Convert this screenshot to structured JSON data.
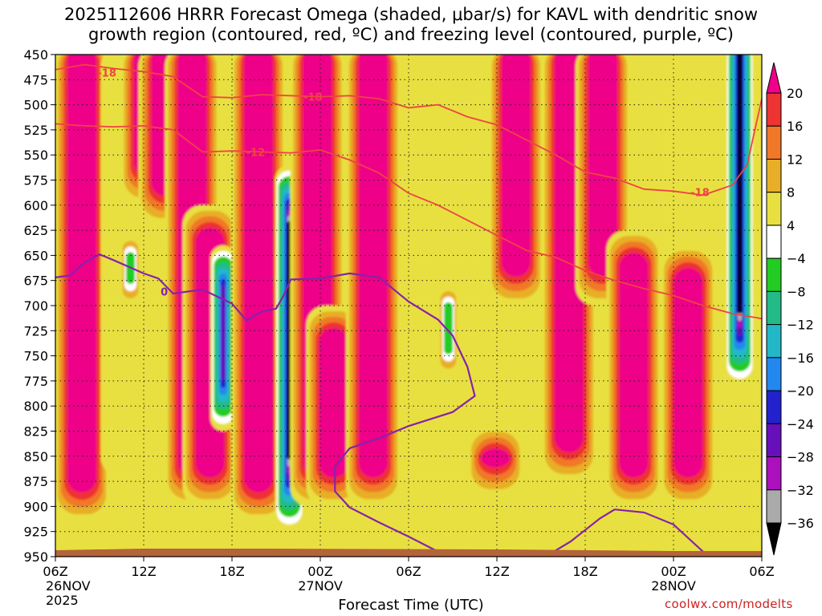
{
  "chart_data": {
    "type": "heatmap",
    "title": [
      "2025112606 HRRR Forecast Omega (shaded, μbar/s) for KAVL with dendritic snow",
      "growth region (contoured, red, ºC) and freezing level (contoured, purple, ºC)"
    ],
    "xlabel": "Forecast Time (UTC)",
    "ylabel": "",
    "credit": "coolwx.com/modelts",
    "y_axis": {
      "unit": "hPa",
      "range": [
        950,
        450
      ],
      "ticks": [
        "450",
        "475",
        "500",
        "525",
        "550",
        "575",
        "600",
        "625",
        "650",
        "675",
        "700",
        "725",
        "750",
        "775",
        "800",
        "825",
        "850",
        "875",
        "900",
        "925",
        "950"
      ]
    },
    "x_axis": {
      "range_hours": [
        0,
        48
      ],
      "ticks": [
        {
          "hour": 0,
          "lines": [
            "06Z",
            "26NOV",
            "2025"
          ]
        },
        {
          "hour": 6,
          "lines": [
            "12Z"
          ]
        },
        {
          "hour": 12,
          "lines": [
            "18Z"
          ]
        },
        {
          "hour": 18,
          "lines": [
            "00Z",
            "27NOV"
          ]
        },
        {
          "hour": 24,
          "lines": [
            "06Z"
          ]
        },
        {
          "hour": 30,
          "lines": [
            "12Z"
          ]
        },
        {
          "hour": 36,
          "lines": [
            "18Z"
          ]
        },
        {
          "hour": 42,
          "lines": [
            "00Z",
            "28NOV"
          ]
        },
        {
          "hour": 48,
          "lines": [
            "06Z"
          ]
        }
      ]
    },
    "grid": true,
    "colorbar": {
      "labels": [
        "20",
        "16",
        "12",
        "8",
        "4",
        "−4",
        "−8",
        "−12",
        "−16",
        "−20",
        "−24",
        "−28",
        "−32",
        "−36"
      ],
      "bins": [
        {
          "color": "#ee0088"
        },
        {
          "color": "#ee3333"
        },
        {
          "color": "#f07828"
        },
        {
          "color": "#e8ae28"
        },
        {
          "color": "#e8e040"
        },
        {
          "color": "#ffffff"
        },
        {
          "color": "#22cc22"
        },
        {
          "color": "#22bb88"
        },
        {
          "color": "#22b8c8"
        },
        {
          "color": "#2288ee"
        },
        {
          "color": "#2222cc"
        },
        {
          "color": "#6610bb"
        },
        {
          "color": "#aa10bb"
        },
        {
          "color": "#aaaaaa"
        },
        {
          "color": "#000000"
        }
      ]
    },
    "omega_columns": [
      {
        "hour": 0.5,
        "top": 450,
        "bottom": 930,
        "level": "yellow"
      },
      {
        "hour": 1.8,
        "top": 450,
        "bottom": 915,
        "level": "magenta"
      },
      {
        "hour": 4.5,
        "top": 450,
        "bottom": 870,
        "level": "yellow"
      },
      {
        "hour": 5.1,
        "top": 630,
        "bottom": 700,
        "level": "green"
      },
      {
        "hour": 6.3,
        "top": 450,
        "bottom": 600,
        "level": "magenta"
      },
      {
        "hour": 7.5,
        "top": 450,
        "bottom": 620,
        "level": "magenta"
      },
      {
        "hour": 9.3,
        "top": 450,
        "bottom": 900,
        "level": "magenta"
      },
      {
        "hour": 10.5,
        "top": 600,
        "bottom": 900,
        "level": "magenta"
      },
      {
        "hour": 11.4,
        "top": 640,
        "bottom": 825,
        "level": "blue"
      },
      {
        "hour": 13.8,
        "top": 450,
        "bottom": 915,
        "level": "magenta"
      },
      {
        "hour": 15.9,
        "top": 560,
        "bottom": 925,
        "level": "black"
      },
      {
        "hour": 17.8,
        "top": 450,
        "bottom": 900,
        "level": "magenta"
      },
      {
        "hour": 18.9,
        "top": 700,
        "bottom": 900,
        "level": "magenta"
      },
      {
        "hour": 21.6,
        "top": 450,
        "bottom": 900,
        "level": "magenta"
      },
      {
        "hour": 26.7,
        "top": 680,
        "bottom": 770,
        "level": "green"
      },
      {
        "hour": 29.9,
        "top": 820,
        "bottom": 890,
        "level": "magenta"
      },
      {
        "hour": 31.3,
        "top": 450,
        "bottom": 700,
        "level": "magenta"
      },
      {
        "hour": 34.9,
        "top": 450,
        "bottom": 875,
        "level": "magenta"
      },
      {
        "hour": 37.2,
        "top": 450,
        "bottom": 700,
        "level": "magenta"
      },
      {
        "hour": 39.3,
        "top": 625,
        "bottom": 900,
        "level": "magenta"
      },
      {
        "hour": 43.0,
        "top": 640,
        "bottom": 900,
        "level": "magenta"
      },
      {
        "hour": 46.5,
        "top": 450,
        "bottom": 780,
        "level": "black"
      }
    ],
    "series": [
      {
        "name": "dendritic snow growth -18ºC",
        "color": "#ee4444",
        "points": [
          [
            0,
            465
          ],
          [
            2,
            460
          ],
          [
            4,
            464
          ],
          [
            6,
            467
          ],
          [
            8,
            472
          ],
          [
            10,
            492
          ],
          [
            12,
            493
          ],
          [
            14,
            490
          ],
          [
            16,
            491
          ],
          [
            18,
            492
          ],
          [
            20,
            491
          ],
          [
            22,
            494
          ],
          [
            24,
            503
          ],
          [
            26,
            500
          ],
          [
            28,
            512
          ],
          [
            30,
            520
          ],
          [
            32,
            535
          ],
          [
            34,
            550
          ],
          [
            36,
            567
          ],
          [
            38,
            573
          ],
          [
            40,
            584
          ],
          [
            42,
            586
          ],
          [
            44,
            590
          ],
          [
            46,
            580
          ],
          [
            47,
            560
          ],
          [
            48,
            494
          ]
        ]
      },
      {
        "name": "dendritic snow growth -12ºC",
        "color": "#ee4444",
        "points": [
          [
            0,
            519
          ],
          [
            2,
            521
          ],
          [
            4,
            522
          ],
          [
            6,
            521
          ],
          [
            8,
            525
          ],
          [
            10,
            547
          ],
          [
            12,
            546
          ],
          [
            14,
            547
          ],
          [
            16,
            548
          ],
          [
            18,
            545
          ],
          [
            20,
            555
          ],
          [
            22,
            568
          ],
          [
            24,
            588
          ],
          [
            26,
            600
          ],
          [
            28,
            615
          ],
          [
            30,
            630
          ],
          [
            32,
            645
          ],
          [
            34,
            652
          ],
          [
            36,
            665
          ],
          [
            38,
            675
          ],
          [
            40,
            683
          ],
          [
            42,
            690
          ],
          [
            44,
            700
          ],
          [
            46,
            708
          ],
          [
            48,
            713
          ]
        ]
      },
      {
        "name": "freezing level 0ºC",
        "color": "#8822aa",
        "points": [
          [
            0,
            672
          ],
          [
            1,
            670
          ],
          [
            2,
            657
          ],
          [
            3,
            649
          ],
          [
            4,
            655
          ],
          [
            6,
            668
          ],
          [
            7,
            673
          ],
          [
            8,
            688
          ],
          [
            10,
            684
          ],
          [
            12,
            698
          ],
          [
            13,
            715
          ],
          [
            14,
            706
          ],
          [
            15,
            703
          ],
          [
            15.5,
            690
          ],
          [
            16,
            674
          ],
          [
            18,
            673
          ],
          [
            20,
            668
          ],
          [
            22,
            672
          ],
          [
            24,
            696
          ],
          [
            26,
            714
          ],
          [
            27,
            730
          ],
          [
            28,
            761
          ],
          [
            28.5,
            790
          ],
          [
            27,
            806
          ],
          [
            24,
            820
          ],
          [
            22,
            832
          ],
          [
            20,
            842
          ],
          [
            19,
            860
          ],
          [
            19,
            885
          ],
          [
            20,
            901
          ],
          [
            22,
            916
          ],
          [
            24,
            930
          ],
          [
            26,
            945
          ],
          [
            27,
            950
          ]
        ]
      },
      {
        "name": "freezing level 0ºC (28NOV)",
        "color": "#8822aa",
        "points": [
          [
            33.3,
            950
          ],
          [
            35,
            935
          ],
          [
            37,
            912
          ],
          [
            38,
            903
          ],
          [
            40,
            906
          ],
          [
            42,
            918
          ],
          [
            44,
            945
          ],
          [
            45,
            950
          ]
        ]
      }
    ],
    "contour_labels": [
      {
        "text": "-18",
        "hour": 3.5,
        "pressure": 468,
        "color": "#ee4444"
      },
      {
        "text": "-18",
        "hour": 17.5,
        "pressure": 492,
        "color": "#ee4444"
      },
      {
        "text": "-12",
        "hour": 13.6,
        "pressure": 547,
        "color": "#ee4444"
      },
      {
        "text": "-18",
        "hour": 43.8,
        "pressure": 587,
        "color": "#ee4444"
      },
      {
        "text": "0",
        "hour": 7.4,
        "pressure": 686,
        "color": "#8822aa"
      }
    ]
  }
}
